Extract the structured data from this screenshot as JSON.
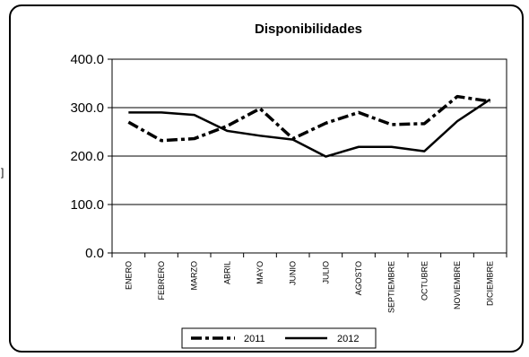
{
  "chart_data": {
    "type": "line",
    "title": "Disponibilidades",
    "categories": [
      "ENERO",
      "FEBRERO",
      "MARZO",
      "ABRIL",
      "MAYO",
      "JUNIO",
      "JULIO",
      "AGOSTO",
      "SEPTIEMBRE",
      "OCTUBRE",
      "NOVIEMBRE",
      "DICIEMBRE"
    ],
    "ylim": [
      0,
      400
    ],
    "yticks": [
      "0.0",
      "100.0",
      "200.0",
      "300.0",
      "400.0"
    ],
    "grid": true,
    "legend": "bottom",
    "series": [
      {
        "name": "2011",
        "style": "dash-dot",
        "color": "#000000",
        "values": [
          270,
          232,
          236,
          262,
          298,
          236,
          268,
          290,
          265,
          267,
          323,
          313
        ]
      },
      {
        "name": "2012",
        "style": "solid",
        "color": "#000000",
        "values": [
          290,
          290,
          285,
          252,
          242,
          234,
          199,
          219,
          219,
          210,
          272,
          317
        ]
      }
    ]
  },
  "side_mark": "]"
}
